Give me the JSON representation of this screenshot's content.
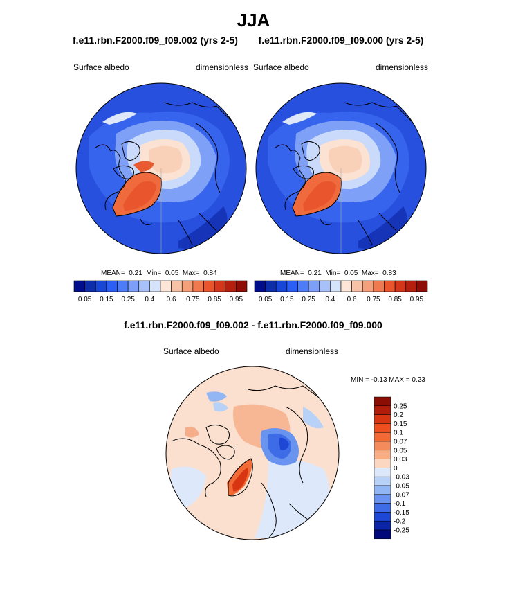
{
  "title": "JJA",
  "left_panel": {
    "case": "f.e11.rbn.F2000.f09_f09.002 (yrs 2-5)",
    "variable": "Surface albedo",
    "units": "dimensionless",
    "stats": {
      "mean_label": "MEAN=",
      "mean": "0.21",
      "min_label": "Min=",
      "min": "0.05",
      "max_label": "Max=",
      "max": "0.84"
    }
  },
  "right_panel": {
    "case": "f.e11.rbn.F2000.f09_f09.000 (yrs 2-5)",
    "variable": "Surface albedo",
    "units": "dimensionless",
    "stats": {
      "mean_label": "MEAN=",
      "mean": "0.21",
      "min_label": "Min=",
      "min": "0.05",
      "max_label": "Max=",
      "max": "0.83"
    }
  },
  "abs_colorbar": {
    "labels": [
      "0.05",
      "0.15",
      "0.25",
      "0.4",
      "0.6",
      "0.75",
      "0.85",
      "0.95"
    ],
    "colors": [
      "#000e8c",
      "#0d2ea8",
      "#1846d6",
      "#2b5ef5",
      "#4d7cf6",
      "#7d9ff7",
      "#a8c1f9",
      "#d5e3fb",
      "#fde6d8",
      "#f8c2a6",
      "#f4a07a",
      "#f07a50",
      "#e9552c",
      "#d3371b",
      "#b4200d",
      "#8e0d06"
    ]
  },
  "diff_panel": {
    "title": "f.e11.rbn.F2000.f09_f09.002 - f.e11.rbn.F2000.f09_f09.000",
    "variable": "Surface albedo",
    "units": "dimensionless",
    "stats": "MIN =  -0.13 MAX =   0.23"
  },
  "diff_colorbar": {
    "labels": [
      "0.25",
      "0.2",
      "0.15",
      "0.1",
      "0.07",
      "0.05",
      "0.03",
      "0",
      "-0.03",
      "-0.05",
      "-0.07",
      "-0.1",
      "-0.15",
      "-0.2",
      "-0.25"
    ],
    "colors": [
      "#8c0d04",
      "#b01e0b",
      "#d83613",
      "#ef4f1f",
      "#f26a36",
      "#f48b5c",
      "#f7ad85",
      "#fbd6c0",
      "#dde9fb",
      "#b8d1f7",
      "#92b5f3",
      "#6893ee",
      "#3d6ce6",
      "#1d47d4",
      "#0c24a8",
      "#00087a"
    ]
  }
}
